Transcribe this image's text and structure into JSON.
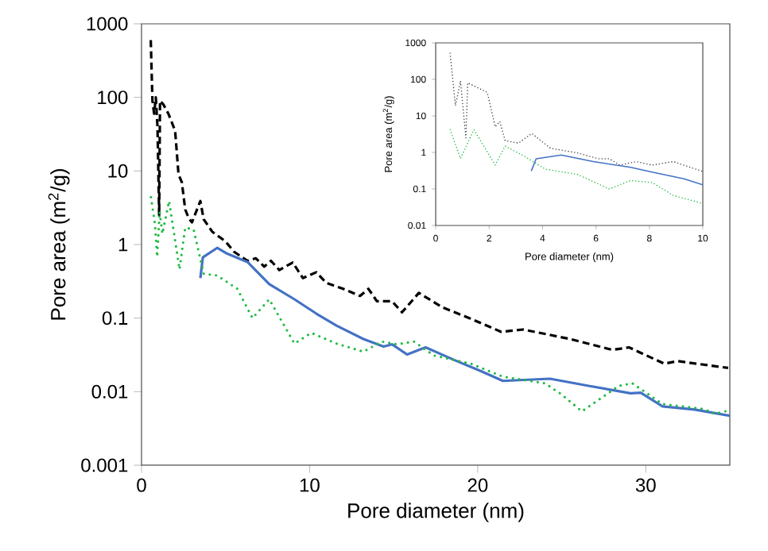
{
  "chart_data": [
    {
      "type": "line",
      "xlabel": "Pore diameter (nm)",
      "ylabel": "Pore area (m$^{2}$/g)",
      "log": "y",
      "xlim": [
        0,
        35
      ],
      "ylim": [
        0.001,
        1000
      ],
      "xticks": [
        0,
        10,
        20,
        30
      ],
      "yticks": [
        0.001,
        0.01,
        0.1,
        1,
        10,
        100,
        1000
      ],
      "series": [
        {
          "color": "#000000",
          "line_style": "dashed",
          "x": [
            0.55,
            0.65,
            0.75,
            0.85,
            0.95,
            1.05,
            1.1,
            1.3,
            1.6,
            2.0,
            2.2,
            2.4,
            2.6,
            2.8,
            3.0,
            3.5,
            3.7,
            4.2,
            5.0,
            5.5,
            6.3,
            6.8,
            7.3,
            7.7,
            8.2,
            9.0,
            9.6,
            10.4,
            11.0,
            12.0,
            13.0,
            13.5,
            14.0,
            14.9,
            15.5,
            16.5,
            17.9,
            19.5,
            21.4,
            22.7,
            25.5,
            28.0,
            29.0,
            31.1,
            31.9,
            34.9
          ],
          "values": [
            600,
            90,
            60,
            100,
            40,
            2.5,
            90,
            80,
            60,
            35,
            9,
            7,
            3,
            2.3,
            2.0,
            3.9,
            2.2,
            1.5,
            1.1,
            0.8,
            0.6,
            0.65,
            0.5,
            0.6,
            0.45,
            0.57,
            0.35,
            0.42,
            0.3,
            0.25,
            0.2,
            0.25,
            0.17,
            0.17,
            0.12,
            0.22,
            0.14,
            0.1,
            0.065,
            0.07,
            0.052,
            0.037,
            0.04,
            0.024,
            0.026,
            0.021
          ]
        },
        {
          "color": "#4472c4",
          "line_style": "solid",
          "x": [
            3.5,
            3.65,
            4.5,
            5.1,
            6.3,
            7.6,
            9.1,
            10.4,
            11.6,
            13.2,
            14.4,
            14.9,
            15.8,
            16.9,
            18.6,
            20.2,
            21.5,
            24.3,
            26.6,
            29.1,
            29.7,
            31.0,
            32.9,
            35.0
          ],
          "values": [
            0.35,
            0.67,
            0.9,
            0.75,
            0.58,
            0.29,
            0.18,
            0.115,
            0.079,
            0.052,
            0.041,
            0.044,
            0.032,
            0.04,
            0.027,
            0.019,
            0.014,
            0.015,
            0.012,
            0.0095,
            0.0097,
            0.0063,
            0.0057,
            0.0047
          ]
        },
        {
          "color": "#22bb44",
          "line_style": "dotted",
          "x": [
            0.56,
            0.8,
            0.93,
            1.08,
            1.24,
            1.64,
            2.26,
            2.6,
            3.1,
            3.7,
            4.5,
            5.7,
            6.6,
            7.6,
            9.1,
            10.1,
            11.6,
            13.2,
            14.3,
            15.2,
            16.2,
            17.4,
            19.6,
            21.5,
            24.0,
            24.9,
            26.2,
            27.1,
            28.4,
            29.2,
            31.0,
            33.5,
            34.1,
            35.0
          ],
          "values": [
            4.4,
            1.9,
            0.68,
            2.8,
            1.4,
            3.9,
            0.46,
            1.7,
            1.6,
            0.4,
            0.38,
            0.25,
            0.1,
            0.18,
            0.045,
            0.063,
            0.045,
            0.035,
            0.048,
            0.044,
            0.048,
            0.031,
            0.024,
            0.016,
            0.013,
            0.0095,
            0.0054,
            0.0075,
            0.012,
            0.013,
            0.0068,
            0.0058,
            0.005,
            0.0056
          ]
        }
      ]
    },
    {
      "type": "line",
      "xlabel": "Pore diameter (nm)",
      "ylabel": "Pore area (m$^{2}$/g)",
      "log": "y",
      "xlim": [
        0,
        10
      ],
      "ylim": [
        0.01,
        1000
      ],
      "xticks": [
        0,
        2,
        4,
        6,
        8,
        10
      ],
      "yticks": [
        0.01,
        0.1,
        1,
        10,
        100,
        1000
      ],
      "series": [
        {
          "color": "#444444",
          "line_style": "dotted",
          "x": [
            0.54,
            0.74,
            0.93,
            1.13,
            1.2,
            1.93,
            2.23,
            2.4,
            2.6,
            3.1,
            3.6,
            4.3,
            5.3,
            6.1,
            6.5,
            6.9,
            7.5,
            8.1,
            8.9,
            10.0
          ],
          "values": [
            520,
            19,
            90,
            2.5,
            80,
            44,
            5,
            7,
            2.1,
            1.8,
            3.3,
            1.3,
            0.97,
            0.67,
            0.67,
            0.45,
            0.56,
            0.45,
            0.56,
            0.3
          ]
        },
        {
          "color": "#4472c4",
          "line_style": "solid",
          "x": [
            3.58,
            3.76,
            4.7,
            5.9,
            7.3,
            8.1,
            9.3,
            10.0
          ],
          "values": [
            0.31,
            0.67,
            0.85,
            0.56,
            0.39,
            0.29,
            0.19,
            0.13
          ]
        },
        {
          "color": "#22bb44",
          "line_style": "dotted",
          "x": [
            0.54,
            0.93,
            1.43,
            2.23,
            2.6,
            3.3,
            4.1,
            5.3,
            6.5,
            7.3,
            8.1,
            8.9,
            10.0
          ],
          "values": [
            4.2,
            0.68,
            4.2,
            0.45,
            1.5,
            0.8,
            0.35,
            0.25,
            0.1,
            0.17,
            0.15,
            0.066,
            0.04
          ]
        }
      ]
    }
  ]
}
